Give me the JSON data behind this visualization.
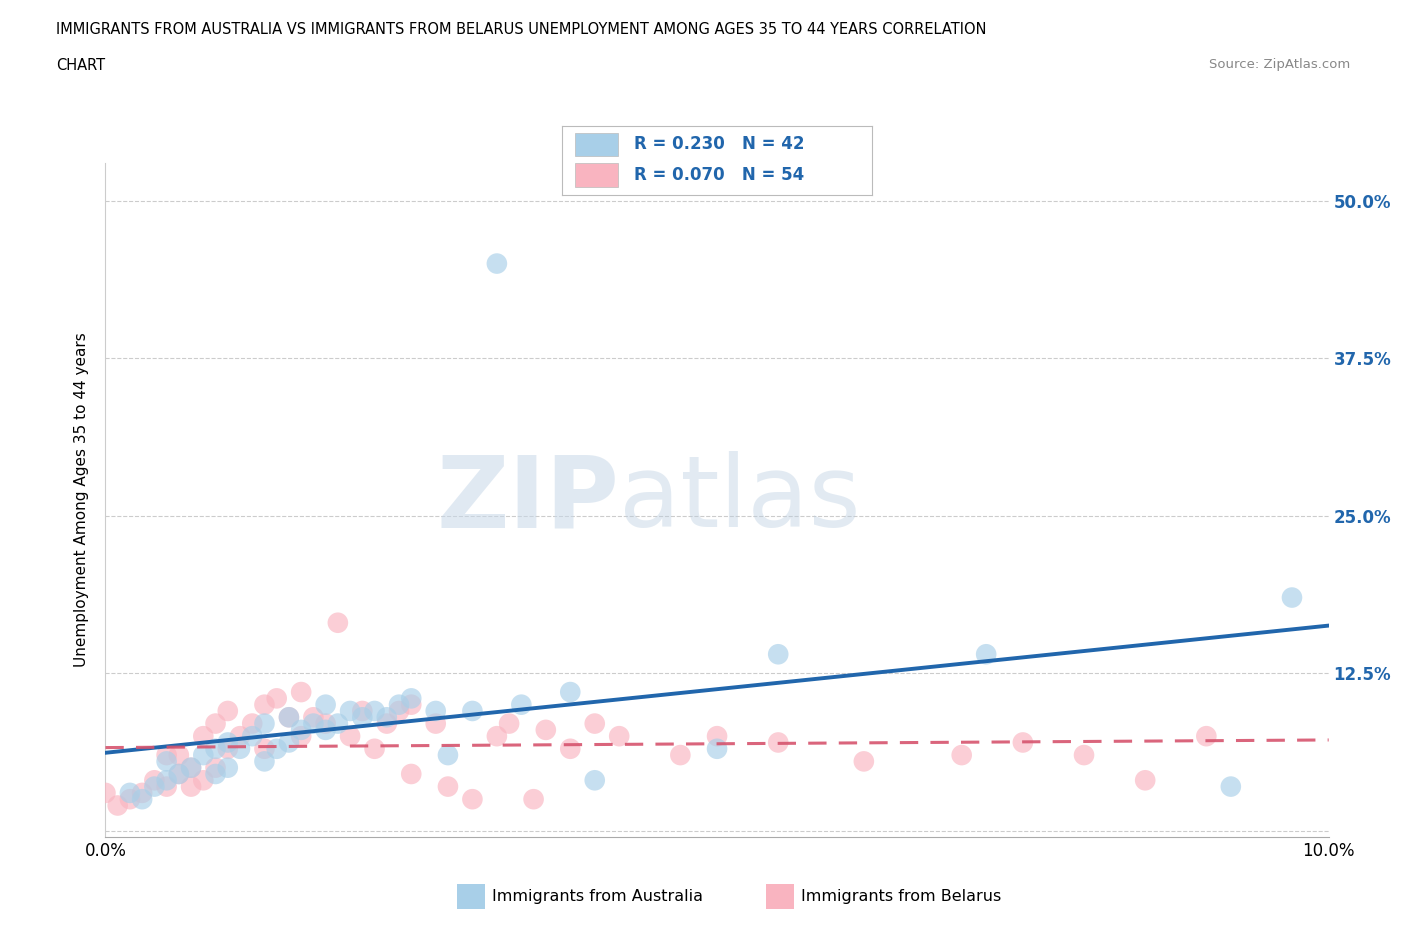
{
  "title_line1": "IMMIGRANTS FROM AUSTRALIA VS IMMIGRANTS FROM BELARUS UNEMPLOYMENT AMONG AGES 35 TO 44 YEARS CORRELATION",
  "title_line2": "CHART",
  "source": "Source: ZipAtlas.com",
  "ylabel": "Unemployment Among Ages 35 to 44 years",
  "r_australia": 0.23,
  "n_australia": 42,
  "r_belarus": 0.07,
  "n_belarus": 54,
  "color_australia": "#a8cfe8",
  "color_australia_line": "#2166ac",
  "color_belarus": "#f9b4c0",
  "color_belarus_line": "#d6546e",
  "color_right_axis": "#2166ac",
  "background_color": "#ffffff",
  "watermark_zip": "ZIP",
  "watermark_atlas": "atlas",
  "xlim": [
    0.0,
    0.1
  ],
  "ylim": [
    -0.005,
    0.53
  ],
  "yticks": [
    0.0,
    0.125,
    0.25,
    0.375,
    0.5
  ],
  "ytick_labels": [
    "",
    "12.5%",
    "25.0%",
    "37.5%",
    "50.0%"
  ],
  "xticks": [
    0.0,
    0.02,
    0.04,
    0.06,
    0.08,
    0.1
  ],
  "xtick_labels": [
    "0.0%",
    "",
    "",
    "",
    "",
    "10.0%"
  ],
  "australia_x": [
    0.002,
    0.003,
    0.004,
    0.005,
    0.005,
    0.006,
    0.007,
    0.008,
    0.009,
    0.009,
    0.01,
    0.01,
    0.011,
    0.012,
    0.013,
    0.013,
    0.014,
    0.015,
    0.015,
    0.016,
    0.017,
    0.018,
    0.018,
    0.019,
    0.02,
    0.021,
    0.022,
    0.023,
    0.024,
    0.025,
    0.027,
    0.028,
    0.03,
    0.032,
    0.034,
    0.038,
    0.04,
    0.05,
    0.055,
    0.072,
    0.092,
    0.097
  ],
  "australia_y": [
    0.03,
    0.025,
    0.035,
    0.04,
    0.055,
    0.045,
    0.05,
    0.06,
    0.045,
    0.065,
    0.05,
    0.07,
    0.065,
    0.075,
    0.055,
    0.085,
    0.065,
    0.07,
    0.09,
    0.08,
    0.085,
    0.08,
    0.1,
    0.085,
    0.095,
    0.09,
    0.095,
    0.09,
    0.1,
    0.105,
    0.095,
    0.06,
    0.095,
    0.45,
    0.1,
    0.11,
    0.04,
    0.065,
    0.14,
    0.14,
    0.035,
    0.185
  ],
  "belarus_x": [
    0.0,
    0.001,
    0.002,
    0.003,
    0.004,
    0.005,
    0.005,
    0.006,
    0.006,
    0.007,
    0.007,
    0.008,
    0.008,
    0.009,
    0.009,
    0.01,
    0.01,
    0.011,
    0.012,
    0.013,
    0.013,
    0.014,
    0.015,
    0.016,
    0.016,
    0.017,
    0.018,
    0.019,
    0.02,
    0.021,
    0.022,
    0.023,
    0.024,
    0.025,
    0.025,
    0.027,
    0.028,
    0.03,
    0.032,
    0.033,
    0.035,
    0.036,
    0.038,
    0.04,
    0.042,
    0.047,
    0.05,
    0.055,
    0.062,
    0.07,
    0.075,
    0.08,
    0.085,
    0.09
  ],
  "belarus_y": [
    0.03,
    0.02,
    0.025,
    0.03,
    0.04,
    0.035,
    0.06,
    0.045,
    0.06,
    0.05,
    0.035,
    0.04,
    0.075,
    0.05,
    0.085,
    0.065,
    0.095,
    0.075,
    0.085,
    0.1,
    0.065,
    0.105,
    0.09,
    0.075,
    0.11,
    0.09,
    0.085,
    0.165,
    0.075,
    0.095,
    0.065,
    0.085,
    0.095,
    0.1,
    0.045,
    0.085,
    0.035,
    0.025,
    0.075,
    0.085,
    0.025,
    0.08,
    0.065,
    0.085,
    0.075,
    0.06,
    0.075,
    0.07,
    0.055,
    0.06,
    0.07,
    0.06,
    0.04,
    0.075
  ]
}
